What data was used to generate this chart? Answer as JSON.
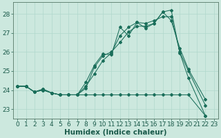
{
  "xlabel": "Humidex (Indice chaleur)",
  "xlim": [
    -0.5,
    23.5
  ],
  "ylim": [
    22.5,
    28.6
  ],
  "xticks": [
    0,
    1,
    2,
    3,
    4,
    5,
    6,
    7,
    8,
    9,
    10,
    11,
    12,
    13,
    14,
    15,
    16,
    17,
    18,
    19,
    20,
    21,
    22,
    23
  ],
  "yticks": [
    23,
    24,
    25,
    26,
    27,
    28
  ],
  "bg_color": "#cce8de",
  "grid_color": "#b0d8cc",
  "line_color": "#1a6e5a",
  "lines": [
    {
      "x": [
        0,
        1,
        2,
        3,
        4,
        5,
        6,
        7,
        8,
        9,
        10,
        11,
        12,
        13,
        14,
        15,
        16,
        17,
        18,
        19,
        20,
        22
      ],
      "y": [
        24.2,
        24.2,
        23.9,
        24.0,
        23.85,
        23.75,
        23.75,
        23.75,
        24.4,
        25.3,
        25.9,
        25.85,
        27.3,
        26.85,
        27.55,
        27.25,
        27.5,
        28.1,
        28.2,
        25.95,
        24.65,
        22.65
      ]
    },
    {
      "x": [
        0,
        1,
        2,
        3,
        4,
        5,
        6,
        7,
        8,
        9,
        10,
        11,
        12,
        13,
        14,
        15,
        16,
        17,
        18,
        19,
        20,
        22
      ],
      "y": [
        24.2,
        24.2,
        23.9,
        24.0,
        23.85,
        23.75,
        23.75,
        23.75,
        24.2,
        24.85,
        25.55,
        25.95,
        26.85,
        27.3,
        27.55,
        27.5,
        27.65,
        27.85,
        27.85,
        26.0,
        25.0,
        23.2
      ]
    },
    {
      "x": [
        0,
        1,
        2,
        3,
        4,
        5,
        6,
        7,
        8,
        9,
        10,
        11,
        12,
        13,
        14,
        15,
        16,
        17,
        18,
        19,
        20,
        22
      ],
      "y": [
        24.2,
        24.2,
        23.9,
        24.05,
        23.85,
        23.75,
        23.75,
        23.75,
        24.1,
        25.2,
        25.8,
        26.0,
        26.5,
        27.05,
        27.35,
        27.35,
        27.5,
        28.1,
        27.65,
        26.2,
        25.1,
        23.5
      ]
    },
    {
      "x": [
        0,
        1,
        2,
        3,
        4,
        5,
        6,
        7,
        8,
        9,
        10,
        11,
        12,
        13,
        14,
        15,
        16,
        17,
        18,
        19,
        20,
        22
      ],
      "y": [
        24.2,
        24.2,
        23.9,
        24.05,
        23.85,
        23.75,
        23.75,
        23.75,
        23.75,
        23.75,
        23.75,
        23.75,
        23.75,
        23.75,
        23.75,
        23.75,
        23.75,
        23.75,
        23.75,
        23.75,
        23.75,
        22.65
      ]
    }
  ],
  "fontsize": 6.5,
  "xlabel_fontsize": 7.5
}
